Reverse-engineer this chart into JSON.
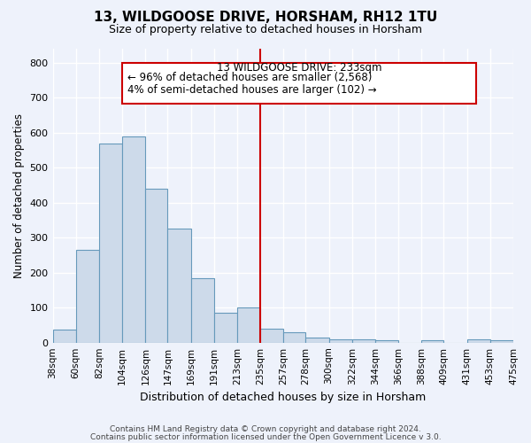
{
  "title": "13, WILDGOOSE DRIVE, HORSHAM, RH12 1TU",
  "subtitle": "Size of property relative to detached houses in Horsham",
  "xlabel": "Distribution of detached houses by size in Horsham",
  "ylabel": "Number of detached properties",
  "bar_color": "#cddaea",
  "bar_edge_color": "#6699bb",
  "vline_color": "#cc0000",
  "annotation_title": "13 WILDGOOSE DRIVE: 233sqm",
  "annotation_line1": "← 96% of detached houses are smaller (2,568)",
  "annotation_line2": "4% of semi-detached houses are larger (102) →",
  "annotation_box_color": "#cc0000",
  "footer1": "Contains HM Land Registry data © Crown copyright and database right 2024.",
  "footer2": "Contains public sector information licensed under the Open Government Licence v 3.0.",
  "bin_edges": [
    38,
    60,
    82,
    104,
    126,
    147,
    169,
    191,
    213,
    235,
    257,
    278,
    300,
    322,
    344,
    366,
    388,
    409,
    431,
    453,
    475
  ],
  "bin_labels": [
    "38sqm",
    "60sqm",
    "82sqm",
    "104sqm",
    "126sqm",
    "147sqm",
    "169sqm",
    "191sqm",
    "213sqm",
    "235sqm",
    "257sqm",
    "278sqm",
    "300sqm",
    "322sqm",
    "344sqm",
    "366sqm",
    "388sqm",
    "409sqm",
    "431sqm",
    "453sqm",
    "475sqm"
  ],
  "bar_heights": [
    38,
    265,
    570,
    590,
    440,
    325,
    185,
    85,
    100,
    40,
    30,
    15,
    10,
    10,
    8,
    0,
    7,
    0,
    10,
    8
  ],
  "background_color": "#eef2fb",
  "grid_color": "#ffffff",
  "ylim": [
    0,
    840
  ],
  "yticks": [
    0,
    100,
    200,
    300,
    400,
    500,
    600,
    700,
    800
  ]
}
